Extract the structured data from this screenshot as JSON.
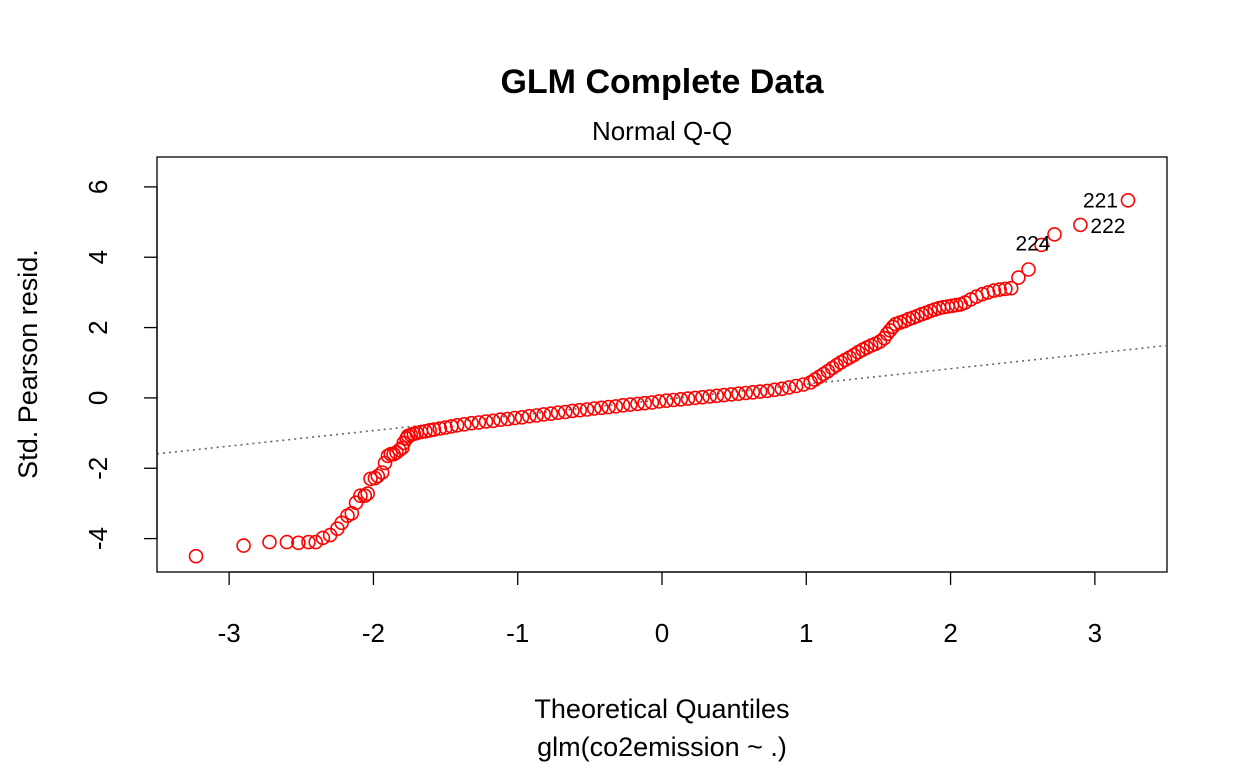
{
  "chart_data": {
    "type": "scatter",
    "title": "GLM Complete Data",
    "subtitle": "Normal Q-Q",
    "xlabel": "Theoretical Quantiles",
    "xlabel_sub": "glm(co2emission ~ .)",
    "ylabel": "Std. Pearson resid.",
    "xlim": [
      -3.5,
      3.5
    ],
    "ylim": [
      -4.95,
      6.85
    ],
    "x_ticks": [
      -3,
      -2,
      -1,
      0,
      1,
      2,
      3
    ],
    "y_ticks": [
      -4,
      -2,
      0,
      2,
      4,
      6
    ],
    "x_tick_labels": [
      "-3",
      "-2",
      "-1",
      "0",
      "1",
      "2",
      "3"
    ],
    "y_tick_labels": [
      "-4",
      "-2",
      "0",
      "2",
      "4",
      "6"
    ],
    "grid": false,
    "legend": "none",
    "point_color": "#ff0000",
    "reference_line": {
      "color": "#666666",
      "style": "dotted",
      "intercept": -0.05,
      "slope": 0.44
    },
    "labeled_points": [
      {
        "label": "221",
        "x": 3.23,
        "y": 5.62
      },
      {
        "label": "222",
        "x": 2.9,
        "y": 4.92
      },
      {
        "label": "224",
        "x": 2.72,
        "y": 4.65
      }
    ],
    "points": [
      [
        -3.23,
        -4.5
      ],
      [
        -2.9,
        -4.2
      ],
      [
        -2.72,
        -4.1
      ],
      [
        -2.6,
        -4.1
      ],
      [
        -2.52,
        -4.12
      ],
      [
        -2.45,
        -4.1
      ],
      [
        -2.4,
        -4.1
      ],
      [
        -2.35,
        -3.98
      ],
      [
        -2.3,
        -3.9
      ],
      [
        -2.25,
        -3.72
      ],
      [
        -2.22,
        -3.55
      ],
      [
        -2.18,
        -3.35
      ],
      [
        -2.15,
        -3.28
      ],
      [
        -2.12,
        -2.98
      ],
      [
        -2.09,
        -2.78
      ],
      [
        -2.06,
        -2.78
      ],
      [
        -2.04,
        -2.72
      ],
      [
        -2.02,
        -2.3
      ],
      [
        -1.99,
        -2.28
      ],
      [
        -1.97,
        -2.22
      ],
      [
        -1.94,
        -2.12
      ],
      [
        -1.92,
        -1.85
      ],
      [
        -1.9,
        -1.65
      ],
      [
        -1.88,
        -1.6
      ],
      [
        -1.86,
        -1.6
      ],
      [
        -1.84,
        -1.55
      ],
      [
        -1.82,
        -1.48
      ],
      [
        -1.8,
        -1.42
      ],
      [
        -1.79,
        -1.28
      ],
      [
        -1.77,
        -1.15
      ],
      [
        -1.76,
        -1.08
      ],
      [
        -1.74,
        -1.05
      ],
      [
        -1.72,
        -1.02
      ],
      [
        -1.7,
        -1.0
      ],
      [
        -1.67,
        -0.97
      ],
      [
        -1.64,
        -0.95
      ],
      [
        -1.61,
        -0.92
      ],
      [
        -1.58,
        -0.9
      ],
      [
        -1.54,
        -0.87
      ],
      [
        -1.5,
        -0.84
      ],
      [
        -1.46,
        -0.81
      ],
      [
        -1.42,
        -0.78
      ],
      [
        -1.37,
        -0.75
      ],
      [
        -1.32,
        -0.72
      ],
      [
        -1.27,
        -0.7
      ],
      [
        -1.22,
        -0.67
      ],
      [
        -1.17,
        -0.65
      ],
      [
        -1.12,
        -0.62
      ],
      [
        -1.07,
        -0.6
      ],
      [
        -1.02,
        -0.57
      ],
      [
        -0.97,
        -0.55
      ],
      [
        -0.92,
        -0.52
      ],
      [
        -0.87,
        -0.5
      ],
      [
        -0.82,
        -0.47
      ],
      [
        -0.77,
        -0.45
      ],
      [
        -0.72,
        -0.42
      ],
      [
        -0.67,
        -0.4
      ],
      [
        -0.62,
        -0.37
      ],
      [
        -0.57,
        -0.35
      ],
      [
        -0.52,
        -0.33
      ],
      [
        -0.47,
        -0.3
      ],
      [
        -0.42,
        -0.28
      ],
      [
        -0.37,
        -0.26
      ],
      [
        -0.32,
        -0.24
      ],
      [
        -0.27,
        -0.21
      ],
      [
        -0.22,
        -0.19
      ],
      [
        -0.17,
        -0.17
      ],
      [
        -0.12,
        -0.15
      ],
      [
        -0.07,
        -0.13
      ],
      [
        -0.02,
        -0.1
      ],
      [
        0.03,
        -0.08
      ],
      [
        0.08,
        -0.06
      ],
      [
        0.13,
        -0.04
      ],
      [
        0.18,
        -0.02
      ],
      [
        0.23,
        0.0
      ],
      [
        0.28,
        0.02
      ],
      [
        0.33,
        0.04
      ],
      [
        0.38,
        0.06
      ],
      [
        0.43,
        0.08
      ],
      [
        0.48,
        0.1
      ],
      [
        0.53,
        0.12
      ],
      [
        0.58,
        0.14
      ],
      [
        0.63,
        0.16
      ],
      [
        0.68,
        0.18
      ],
      [
        0.73,
        0.2
      ],
      [
        0.78,
        0.23
      ],
      [
        0.83,
        0.26
      ],
      [
        0.88,
        0.3
      ],
      [
        0.93,
        0.34
      ],
      [
        0.98,
        0.38
      ],
      [
        1.03,
        0.44
      ],
      [
        1.06,
        0.52
      ],
      [
        1.09,
        0.6
      ],
      [
        1.12,
        0.68
      ],
      [
        1.15,
        0.76
      ],
      [
        1.18,
        0.85
      ],
      [
        1.21,
        0.93
      ],
      [
        1.24,
        1.01
      ],
      [
        1.27,
        1.08
      ],
      [
        1.3,
        1.15
      ],
      [
        1.33,
        1.22
      ],
      [
        1.36,
        1.3
      ],
      [
        1.39,
        1.37
      ],
      [
        1.42,
        1.43
      ],
      [
        1.45,
        1.49
      ],
      [
        1.48,
        1.54
      ],
      [
        1.51,
        1.6
      ],
      [
        1.54,
        1.7
      ],
      [
        1.56,
        1.82
      ],
      [
        1.58,
        1.92
      ],
      [
        1.6,
        2.02
      ],
      [
        1.62,
        2.1
      ],
      [
        1.65,
        2.14
      ],
      [
        1.68,
        2.18
      ],
      [
        1.71,
        2.24
      ],
      [
        1.74,
        2.28
      ],
      [
        1.77,
        2.33
      ],
      [
        1.8,
        2.38
      ],
      [
        1.83,
        2.42
      ],
      [
        1.86,
        2.47
      ],
      [
        1.89,
        2.51
      ],
      [
        1.92,
        2.55
      ],
      [
        1.95,
        2.58
      ],
      [
        1.98,
        2.6
      ],
      [
        2.01,
        2.62
      ],
      [
        2.04,
        2.64
      ],
      [
        2.07,
        2.66
      ],
      [
        2.1,
        2.71
      ],
      [
        2.14,
        2.8
      ],
      [
        2.18,
        2.88
      ],
      [
        2.22,
        2.95
      ],
      [
        2.26,
        3.0
      ],
      [
        2.3,
        3.05
      ],
      [
        2.34,
        3.08
      ],
      [
        2.38,
        3.1
      ],
      [
        2.42,
        3.12
      ],
      [
        2.47,
        3.42
      ],
      [
        2.54,
        3.65
      ],
      [
        2.63,
        4.35
      ],
      [
        2.72,
        4.65
      ],
      [
        2.9,
        4.92
      ],
      [
        3.23,
        5.62
      ]
    ]
  }
}
